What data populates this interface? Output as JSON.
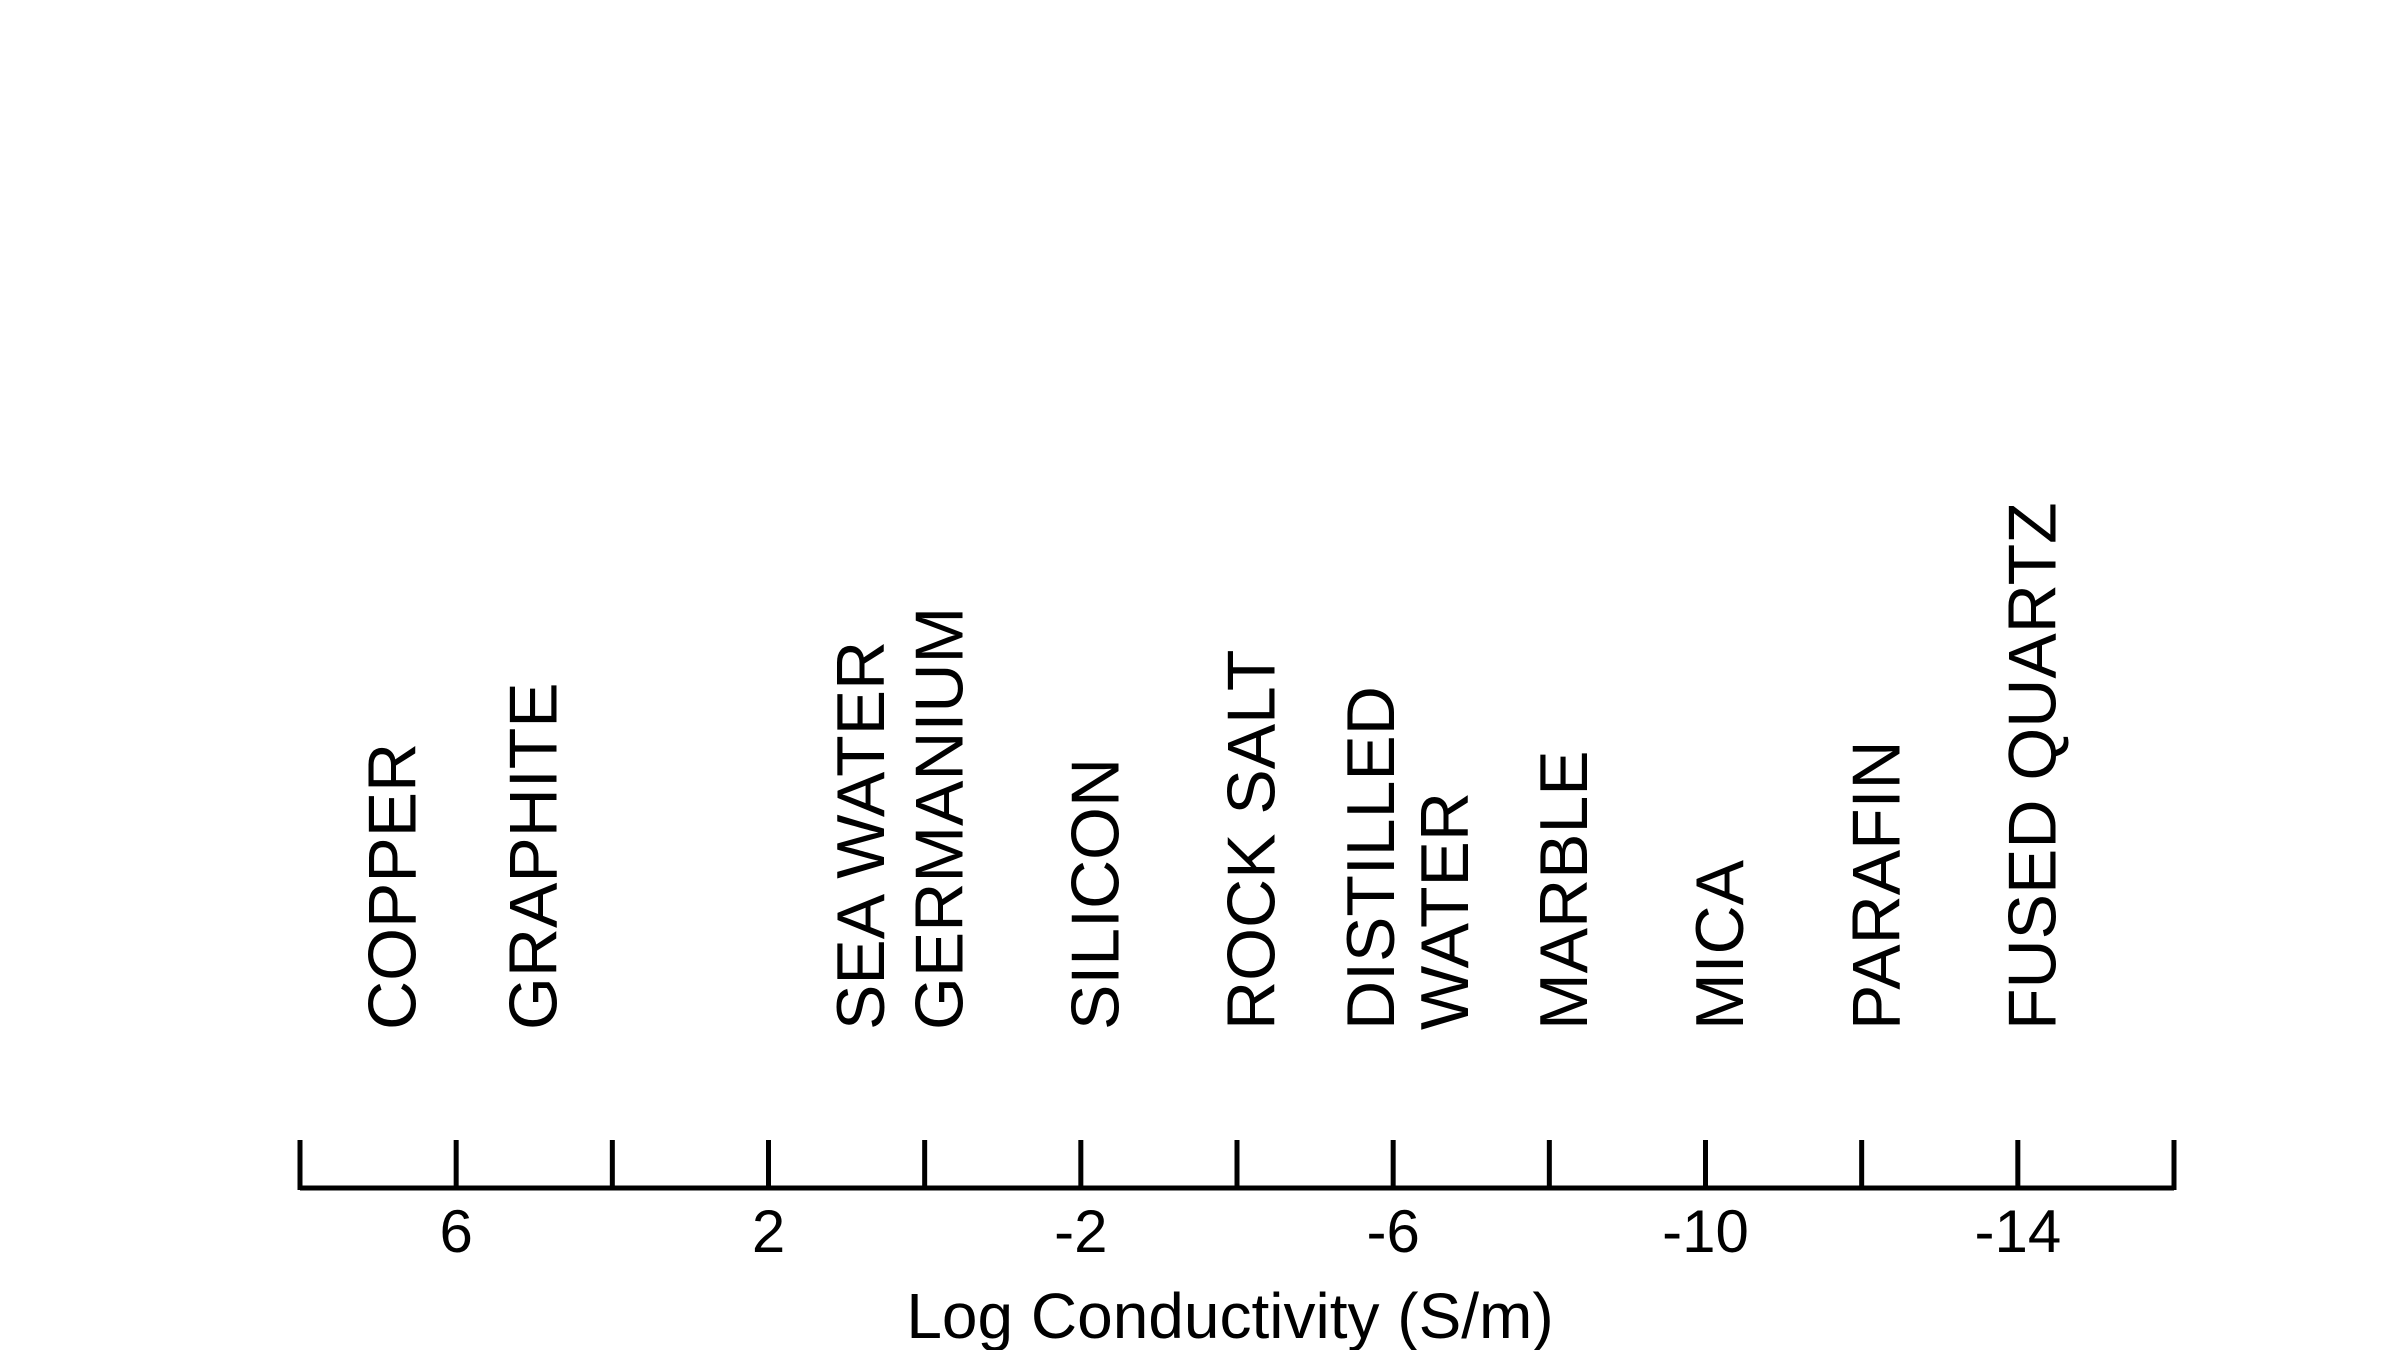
{
  "colors": {
    "background": "#ffffff",
    "ink": "#000000"
  },
  "diagram": {
    "axis_title": "Log Conductivity (S/m)",
    "axis_range": [
      8,
      -16
    ],
    "minor_tick_step": 2,
    "labeled_ticks": [
      {
        "value": 6,
        "label": "6"
      },
      {
        "value": 2,
        "label": "2"
      },
      {
        "value": -2,
        "label": "-2"
      },
      {
        "value": -6,
        "label": "-6"
      },
      {
        "value": -10,
        "label": "-10"
      },
      {
        "value": -14,
        "label": "-14"
      }
    ],
    "materials": [
      {
        "lines": [
          "COPPER"
        ],
        "log_conductivity": 6.8
      },
      {
        "lines": [
          "GRAPHITE"
        ],
        "log_conductivity": 5.0
      },
      {
        "lines": [
          "SEA WATER"
        ],
        "log_conductivity": 0.8
      },
      {
        "lines": [
          "GERMANIUM"
        ],
        "log_conductivity": -0.2
      },
      {
        "lines": [
          "SILICON"
        ],
        "log_conductivity": -2.2
      },
      {
        "lines": [
          "ROCK SALT"
        ],
        "log_conductivity": -4.2
      },
      {
        "lines": [
          "DISTILLED",
          "WATER"
        ],
        "log_conductivity": -6.2
      },
      {
        "lines": [
          "MARBLE"
        ],
        "log_conductivity": -8.2
      },
      {
        "lines": [
          "MICA"
        ],
        "log_conductivity": -10.2
      },
      {
        "lines": [
          "PARAFIN"
        ],
        "log_conductivity": -12.2
      },
      {
        "lines": [
          "FUSED QUARTZ"
        ],
        "log_conductivity": -14.2
      }
    ]
  }
}
